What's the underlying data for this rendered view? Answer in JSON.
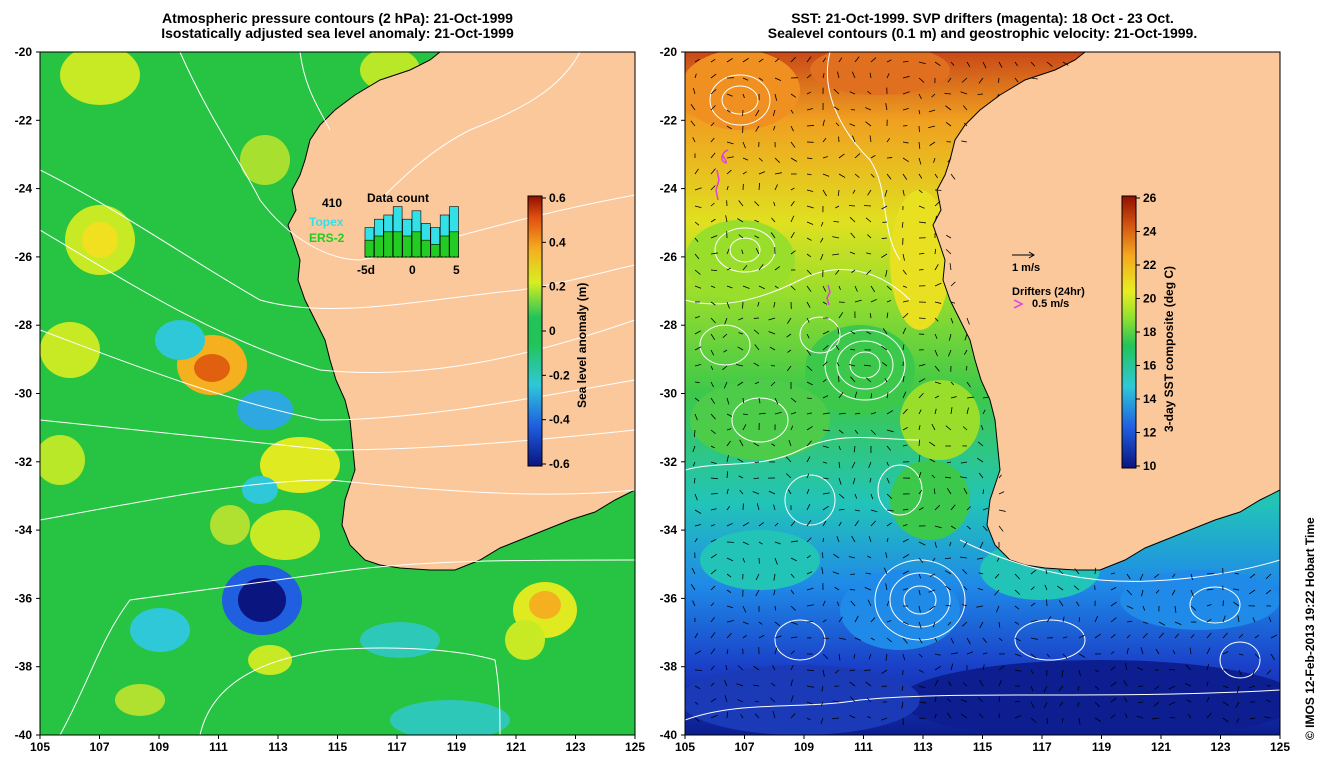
{
  "left_panel": {
    "title_line1": "Atmospheric pressure contours (2 hPa): 21-Oct-1999",
    "title_line2": "Isostatically adjusted sea level anomaly: 21-Oct-1999",
    "x_ticks": [
      "105",
      "107",
      "109",
      "111",
      "113",
      "115",
      "117",
      "119",
      "121",
      "123",
      "125"
    ],
    "y_ticks": [
      "-20",
      "-22",
      "-24",
      "-26",
      "-28",
      "-30",
      "-32",
      "-34",
      "-36",
      "-38",
      "-40"
    ],
    "colorbar": {
      "label": "Sea level anomaly (m)",
      "ticks": [
        "0.6",
        "0.4",
        "0.2",
        "0",
        "-0.2",
        "-0.4",
        "-0.6"
      ]
    },
    "inset": {
      "title": "Data count",
      "count": "410",
      "series1": "Topex",
      "series2": "ERS-2",
      "series1_color": "#33e0e8",
      "series2_color": "#22cc22",
      "x_labels": [
        "-5d",
        "0",
        "5"
      ],
      "series1_values": [
        7,
        9,
        10,
        12,
        9,
        11,
        8,
        7,
        10,
        12
      ],
      "series2_values": [
        4,
        5,
        6,
        6,
        5,
        6,
        4,
        3,
        5,
        6
      ]
    }
  },
  "right_panel": {
    "title_line1": "SST: 21-Oct-1999. SVP drifters (magenta): 18 Oct - 23 Oct.",
    "title_line2": "Sealevel contours (0.1 m) and geostrophic velocity: 21-Oct-1999.",
    "x_ticks": [
      "105",
      "107",
      "109",
      "111",
      "113",
      "115",
      "117",
      "119",
      "121",
      "123",
      "125"
    ],
    "y_ticks": [
      "-20",
      "-22",
      "-24",
      "-26",
      "-28",
      "-30",
      "-32",
      "-34",
      "-36",
      "-38",
      "-40"
    ],
    "colorbar": {
      "label": "3-day SST composite (deg C)",
      "ticks": [
        "26",
        "24",
        "22",
        "20",
        "18",
        "16",
        "14",
        "12",
        "10"
      ]
    },
    "legend_velocity": "1 m/s",
    "legend_drifters": "Drifters (24hr)",
    "legend_drifter_speed": "0.5 m/s"
  },
  "credit": "© IMOS 12-Feb-2013 19:22 Hobart Time",
  "colors": {
    "land": "#fbc89b",
    "ocean_base_left": "#27c443",
    "drifter": "#e040e0"
  }
}
